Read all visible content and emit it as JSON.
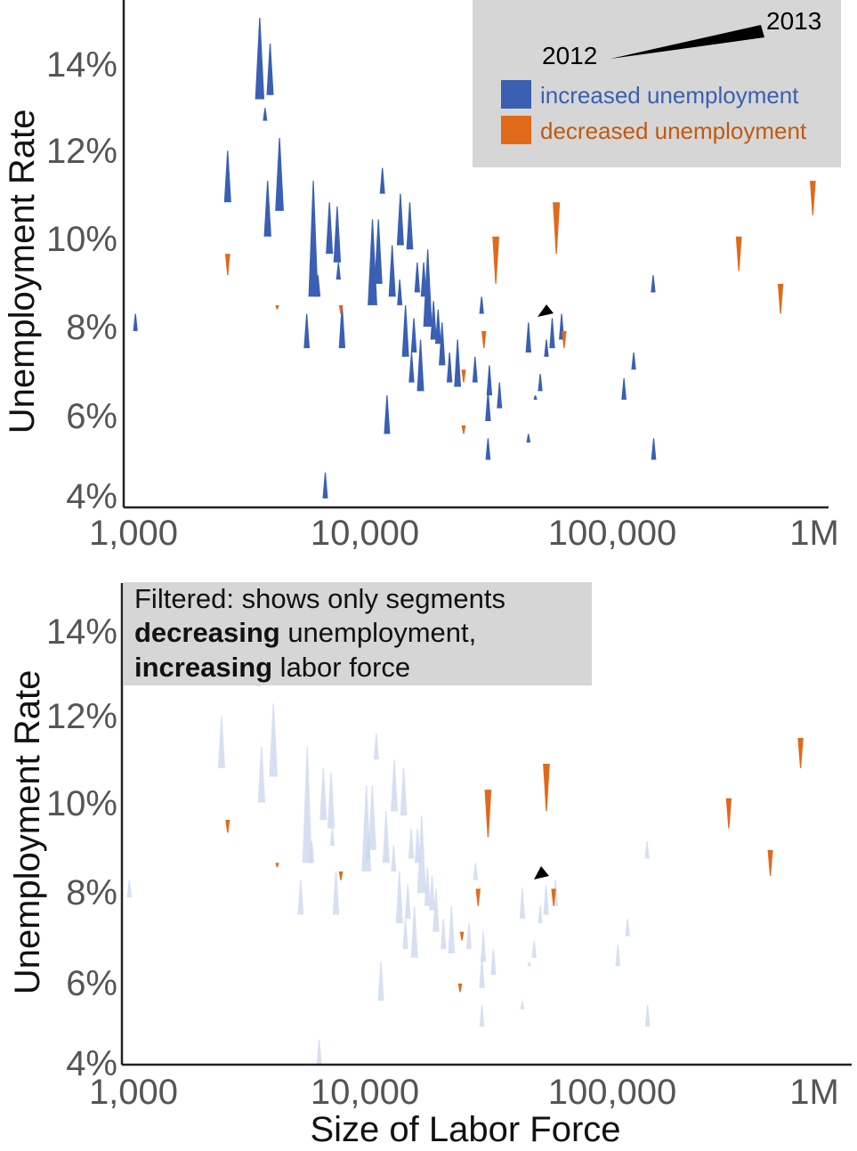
{
  "colors": {
    "increased": "#3a5fb3",
    "decreased": "#e06a1a",
    "axis": "#222222",
    "panel_bg": "#d6d6d6"
  },
  "chart_data": [
    {
      "type": "scatter",
      "subtype": "tapered-segments",
      "title": "",
      "xlabel": "",
      "ylabel": "Unemployment Rate",
      "x_scale": "log",
      "xlim": [
        1000,
        1000000
      ],
      "ylim": [
        3.8,
        15.2
      ],
      "x_ticks": [
        "1,000",
        "10,000",
        "100,000",
        "1M"
      ],
      "y_ticks": [
        "4%",
        "6%",
        "8%",
        "10%",
        "12%",
        "14%"
      ],
      "legend": {
        "position": "top-right",
        "year_start": "2012",
        "year_end": "2013",
        "items": [
          {
            "label": "increased unemployment",
            "color": "increased"
          },
          {
            "label": "decreased unemployment",
            "color": "decreased"
          }
        ]
      },
      "series": [
        {
          "key": "increased",
          "segments": [
            {
              "x": 3600,
              "y0": 15.1,
              "y1": 13.2
            },
            {
              "x": 4000,
              "y0": 14.5,
              "y1": 13.3
            },
            {
              "x": 3800,
              "y0": 13.0,
              "y1": 12.7
            },
            {
              "x": 2600,
              "y0": 12.0,
              "y1": 10.8
            },
            {
              "x": 4400,
              "y0": 12.3,
              "y1": 10.6
            },
            {
              "x": 3900,
              "y0": 11.3,
              "y1": 10.0
            },
            {
              "x": 6200,
              "y0": 11.3,
              "y1": 8.6
            },
            {
              "x": 7300,
              "y0": 10.8,
              "y1": 9.6
            },
            {
              "x": 7900,
              "y0": 10.7,
              "y1": 9.4
            },
            {
              "x": 12500,
              "y0": 11.6,
              "y1": 11.0
            },
            {
              "x": 15000,
              "y0": 11.0,
              "y1": 9.8
            },
            {
              "x": 16500,
              "y0": 10.8,
              "y1": 9.7
            },
            {
              "x": 12000,
              "y0": 10.4,
              "y1": 8.9
            },
            {
              "x": 11300,
              "y0": 10.4,
              "y1": 8.4
            },
            {
              "x": 13800,
              "y0": 9.8,
              "y1": 8.6
            },
            {
              "x": 19800,
              "y0": 9.7,
              "y1": 7.9
            },
            {
              "x": 19000,
              "y0": 9.4,
              "y1": 8.6
            },
            {
              "x": 17800,
              "y0": 9.4,
              "y1": 8.7
            },
            {
              "x": 14900,
              "y0": 9.0,
              "y1": 8.4
            },
            {
              "x": 11500,
              "y0": 9.2,
              "y1": 8.7
            },
            {
              "x": 8000,
              "y0": 9.4,
              "y1": 9.0
            },
            {
              "x": 6500,
              "y0": 9.1,
              "y1": 8.6
            },
            {
              "x": 5800,
              "y0": 8.2,
              "y1": 7.4
            },
            {
              "x": 8300,
              "y0": 8.4,
              "y1": 7.4
            },
            {
              "x": 15800,
              "y0": 8.4,
              "y1": 7.2
            },
            {
              "x": 17200,
              "y0": 8.1,
              "y1": 7.3
            },
            {
              "x": 21000,
              "y0": 8.5,
              "y1": 7.6
            },
            {
              "x": 22000,
              "y0": 8.3,
              "y1": 7.5
            },
            {
              "x": 22900,
              "y0": 8.0,
              "y1": 7.0
            },
            {
              "x": 18400,
              "y0": 7.6,
              "y1": 6.4
            },
            {
              "x": 16800,
              "y0": 7.3,
              "y1": 6.6
            },
            {
              "x": 26800,
              "y0": 7.6,
              "y1": 6.5
            },
            {
              "x": 24700,
              "y0": 7.3,
              "y1": 6.6
            },
            {
              "x": 32000,
              "y0": 7.2,
              "y1": 6.6
            },
            {
              "x": 37000,
              "y0": 7.0,
              "y1": 6.3
            },
            {
              "x": 41000,
              "y0": 6.6,
              "y1": 6.0
            },
            {
              "x": 34200,
              "y0": 8.6,
              "y1": 8.2
            },
            {
              "x": 36500,
              "y0": 6.4,
              "y1": 5.7
            },
            {
              "x": 13100,
              "y0": 6.3,
              "y1": 5.4
            },
            {
              "x": 55000,
              "y0": 8.0,
              "y1": 7.3
            },
            {
              "x": 70000,
              "y0": 8.1,
              "y1": 7.4
            },
            {
              "x": 77000,
              "y0": 8.2,
              "y1": 7.6
            },
            {
              "x": 66000,
              "y0": 7.6,
              "y1": 7.2
            },
            {
              "x": 62000,
              "y0": 6.8,
              "y1": 6.4
            },
            {
              "x": 59000,
              "y0": 6.3,
              "y1": 6.2
            },
            {
              "x": 145000,
              "y0": 6.7,
              "y1": 6.2
            },
            {
              "x": 160000,
              "y0": 7.3,
              "y1": 6.9
            },
            {
              "x": 195000,
              "y0": 9.1,
              "y1": 8.7
            },
            {
              "x": 196000,
              "y0": 5.3,
              "y1": 4.8
            },
            {
              "x": 7000,
              "y0": 4.5,
              "y1": 3.9
            },
            {
              "x": 1020,
              "y0": 8.2,
              "y1": 7.8
            },
            {
              "x": 36500,
              "y0": 5.3,
              "y1": 4.8
            },
            {
              "x": 55000,
              "y0": 5.4,
              "y1": 5.2
            }
          ]
        },
        {
          "key": "decreased",
          "segments": [
            {
              "x": 2600,
              "y0": 9.1,
              "y1": 9.6
            },
            {
              "x": 4300,
              "y0": 8.3,
              "y1": 8.4
            },
            {
              "x": 8200,
              "y0": 8.2,
              "y1": 8.4
            },
            {
              "x": 39500,
              "y0": 8.9,
              "y1": 10.0
            },
            {
              "x": 73000,
              "y0": 9.6,
              "y1": 10.8
            },
            {
              "x": 35000,
              "y0": 7.4,
              "y1": 7.8
            },
            {
              "x": 79000,
              "y0": 7.4,
              "y1": 7.8
            },
            {
              "x": 28500,
              "y0": 6.6,
              "y1": 6.9
            },
            {
              "x": 28500,
              "y0": 5.4,
              "y1": 5.6
            },
            {
              "x": 465000,
              "y0": 9.2,
              "y1": 10.0
            },
            {
              "x": 710000,
              "y0": 8.2,
              "y1": 8.9
            },
            {
              "x": 985000,
              "y0": 10.5,
              "y1": 11.3
            }
          ]
        }
      ]
    },
    {
      "type": "scatter",
      "subtype": "tapered-segments",
      "title": "",
      "xlabel": "Size of Labor Force",
      "ylabel": "Unemployment Rate",
      "x_scale": "log",
      "xlim": [
        1000,
        1000000
      ],
      "ylim": [
        3.8,
        15.2
      ],
      "x_ticks": [
        "1,000",
        "10,000",
        "100,000",
        "1M"
      ],
      "y_ticks": [
        "4%",
        "6%",
        "8%",
        "10%",
        "12%",
        "14%"
      ],
      "annotation": {
        "line1": "Filtered: shows only segments",
        "line2_bold": "decreasing",
        "line2_rest": " unemployment,",
        "line3_bold": "increasing",
        "line3_rest": " labor force"
      },
      "faded_color": "#c9d6ee",
      "highlighted": {
        "key": "decreased",
        "segments": [
          {
            "x": 2600,
            "y0": 9.3,
            "y1": 9.6
          },
          {
            "x": 4300,
            "y0": 8.5,
            "y1": 8.6
          },
          {
            "x": 8200,
            "y0": 8.2,
            "y1": 8.4
          },
          {
            "x": 36500,
            "y0": 9.2,
            "y1": 10.3
          },
          {
            "x": 66000,
            "y0": 9.8,
            "y1": 10.9
          },
          {
            "x": 33000,
            "y0": 7.6,
            "y1": 8.0
          },
          {
            "x": 71000,
            "y0": 7.6,
            "y1": 8.0
          },
          {
            "x": 28000,
            "y0": 6.8,
            "y1": 7.0
          },
          {
            "x": 27500,
            "y0": 5.6,
            "y1": 5.8
          },
          {
            "x": 420000,
            "y0": 9.4,
            "y1": 10.1
          },
          {
            "x": 640000,
            "y0": 8.3,
            "y1": 8.9
          },
          {
            "x": 870000,
            "y0": 10.8,
            "y1": 11.5
          },
          {
            "x": 27000,
            "y0": 7.6,
            "y1": 7.6
          }
        ]
      }
    }
  ]
}
